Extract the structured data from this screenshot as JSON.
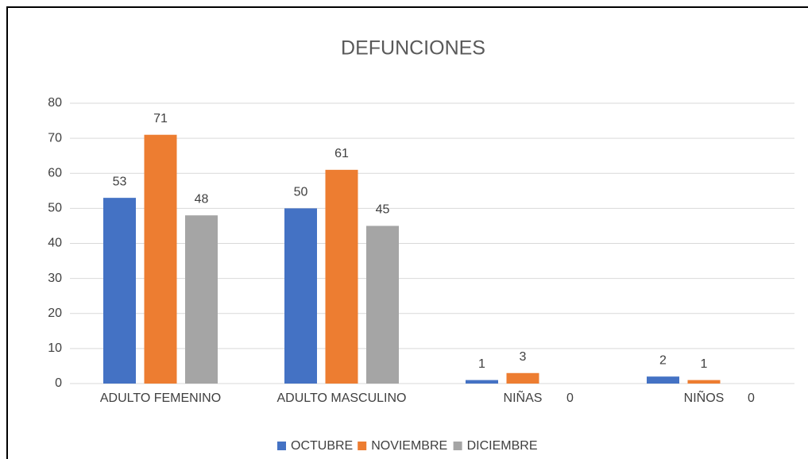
{
  "chart_data": {
    "type": "bar",
    "title": "DEFUNCIONES",
    "categories": [
      "ADULTO FEMENINO",
      "ADULTO MASCULINO",
      "NIÑAS",
      "NIÑOS"
    ],
    "series": [
      {
        "name": "OCTUBRE",
        "color": "#4472c4",
        "values": [
          53,
          50,
          1,
          2
        ]
      },
      {
        "name": "NOVIEMBRE",
        "color": "#ed7d31",
        "values": [
          71,
          61,
          3,
          1
        ]
      },
      {
        "name": "DICIEMBRE",
        "color": "#a5a5a5",
        "values": [
          48,
          45,
          0,
          0
        ]
      }
    ],
    "ylim": [
      0,
      80
    ],
    "yticks": [
      0,
      10,
      20,
      30,
      40,
      50,
      60,
      70,
      80
    ],
    "grid": true,
    "legend": "bottom"
  }
}
